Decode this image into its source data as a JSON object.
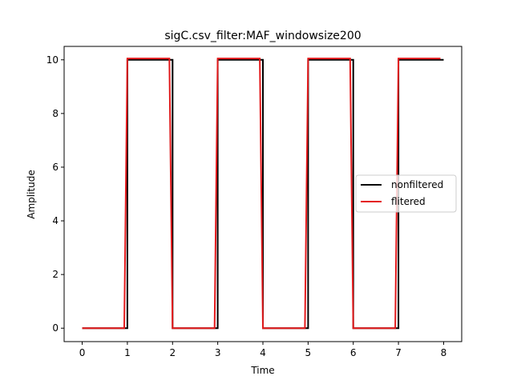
{
  "chart_data": {
    "type": "line",
    "title": "sigC.csv_filter:MAF_windowsize200",
    "xlabel": "Time",
    "ylabel": "Amplitude",
    "xlim": [
      -0.4,
      8.4
    ],
    "ylim": [
      -0.5,
      10.5
    ],
    "xticks": [
      "0",
      "1",
      "2",
      "3",
      "4",
      "5",
      "6",
      "7",
      "8"
    ],
    "yticks": [
      "0",
      "2",
      "4",
      "6",
      "8",
      "10"
    ],
    "grid": false,
    "legend_position": "center-right",
    "series": [
      {
        "name": "nonfiltered",
        "color": "#000000",
        "x": [
          0,
          1.0,
          1.0,
          2.0,
          2.0,
          3.0,
          3.0,
          4.0,
          4.0,
          5.0,
          5.0,
          6.0,
          6.0,
          7.0,
          7.0,
          8.0
        ],
        "y": [
          0,
          0,
          10,
          10,
          0,
          0,
          10,
          10,
          0,
          0,
          10,
          10,
          0,
          0,
          10,
          10
        ]
      },
      {
        "name": "flitered",
        "color": "#e41a1c",
        "x": [
          0,
          0.93,
          1.0,
          1.93,
          2.0,
          2.93,
          3.0,
          3.93,
          4.0,
          4.93,
          5.0,
          5.93,
          6.0,
          6.93,
          7.0,
          7.93
        ],
        "y": [
          0,
          0,
          10.05,
          10.05,
          0,
          0,
          10.05,
          10.05,
          0,
          0,
          10.05,
          10.05,
          0,
          0,
          10.05,
          10.05
        ]
      }
    ]
  }
}
